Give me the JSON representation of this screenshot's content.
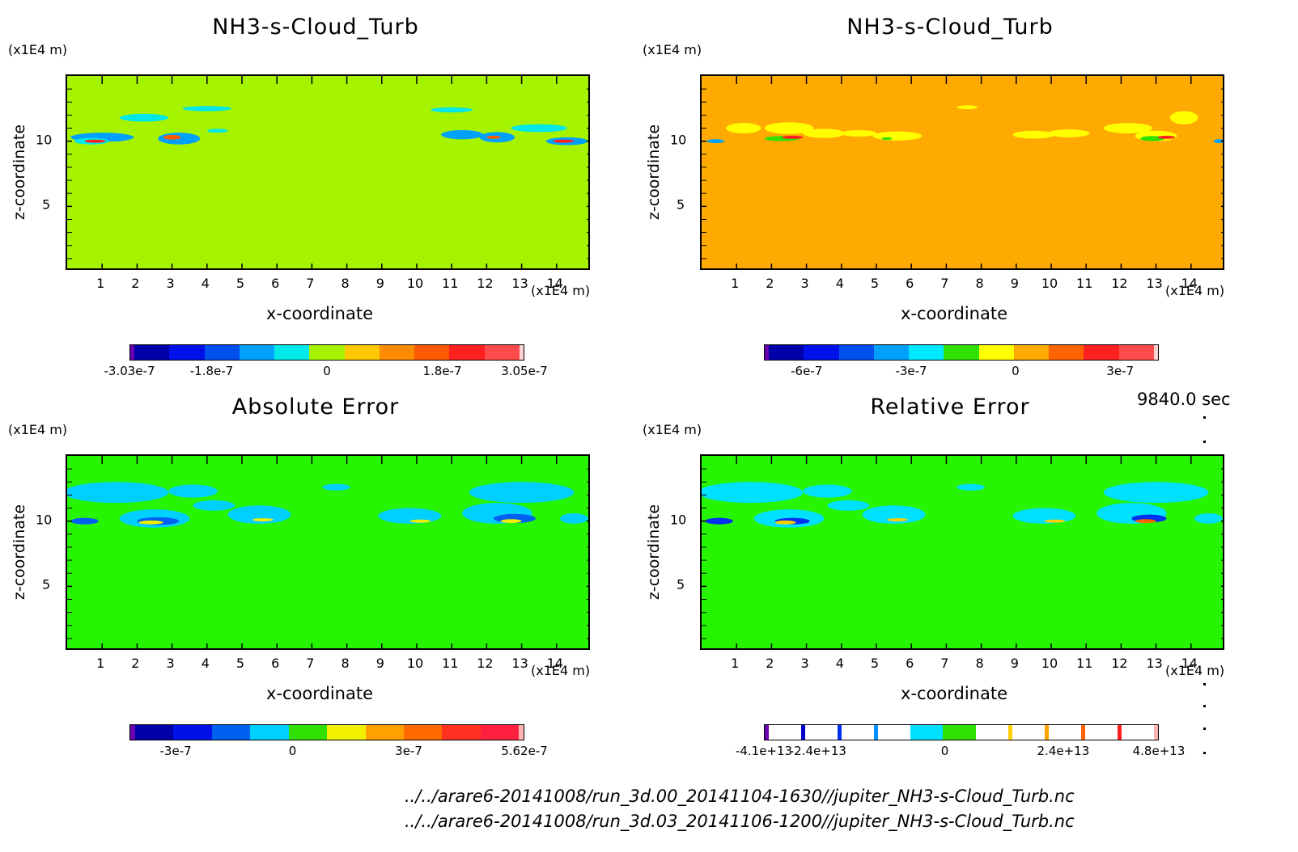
{
  "time_label": "9840.0 sec",
  "files": [
    "../../arare6-20141008/run_3d.00_20141104-1630//jupiter_NH3-s-Cloud_Turb.nc",
    "../../arare6-20141008/run_3d.03_20141106-1200//jupiter_NH3-s-Cloud_Turb.nc"
  ],
  "chart_data": [
    {
      "type": "heatmap",
      "title": "NH3-s-Cloud_Turb",
      "xlabel": "x-coordinate",
      "ylabel": "z-coordinate",
      "x_unit": "(x1E4 m)",
      "z_unit": "(x1E4 m)",
      "x_ticks": [
        "1",
        "2",
        "3",
        "4",
        "5",
        "6",
        "7",
        "8",
        "9",
        "10",
        "11",
        "12",
        "13",
        "14"
      ],
      "z_ticks": [
        "5",
        "10"
      ],
      "xlim": [
        0,
        15
      ],
      "zlim": [
        0,
        15
      ],
      "background_color": "#a6f300",
      "colorbar": {
        "colors": [
          "#6a00b0",
          "#0000a8",
          "#0010e8",
          "#0050f0",
          "#00a0ff",
          "#00e8e8",
          "#a6f300",
          "#ffc800",
          "#ff8c00",
          "#ff5a00",
          "#ff2020",
          "#ff4b4b",
          "#ffd2d2"
        ],
        "labels": [
          "-3.03e-7",
          "-1.8e-7",
          "0",
          "1.8e-7",
          "3.05e-7"
        ]
      }
    },
    {
      "type": "heatmap",
      "title": "NH3-s-Cloud_Turb",
      "xlabel": "x-coordinate",
      "ylabel": "z-coordinate",
      "x_unit": "(x1E4 m)",
      "z_unit": "(x1E4 m)",
      "x_ticks": [
        "1",
        "2",
        "3",
        "4",
        "5",
        "6",
        "7",
        "8",
        "9",
        "10",
        "11",
        "12",
        "13",
        "14"
      ],
      "z_ticks": [
        "5",
        "10"
      ],
      "xlim": [
        0,
        15
      ],
      "zlim": [
        0,
        15
      ],
      "background_color": "#ffaa00",
      "colorbar": {
        "colors": [
          "#6a00b0",
          "#0000a8",
          "#0010e8",
          "#0050f0",
          "#00a0ff",
          "#00e8ff",
          "#30e000",
          "#ffff00",
          "#ffaa00",
          "#ff6400",
          "#ff2020",
          "#ff4b4b",
          "#ffd2d2"
        ],
        "labels": [
          "-6e-7",
          "-3e-7",
          "0",
          "3e-7"
        ]
      }
    },
    {
      "type": "heatmap",
      "title": "Absolute Error",
      "xlabel": "x-coordinate",
      "ylabel": "z-coordinate",
      "x_unit": "(x1E4 m)",
      "z_unit": "(x1E4 m)",
      "x_ticks": [
        "1",
        "2",
        "3",
        "4",
        "5",
        "6",
        "7",
        "8",
        "9",
        "10",
        "11",
        "12",
        "13",
        "14"
      ],
      "z_ticks": [
        "5",
        "10"
      ],
      "xlim": [
        0,
        15
      ],
      "zlim": [
        0,
        15
      ],
      "background_color": "#27f400",
      "colorbar": {
        "colors": [
          "#6a00b0",
          "#0000a8",
          "#0010e8",
          "#0060f0",
          "#00d0ff",
          "#30e000",
          "#f0f000",
          "#ffa000",
          "#ff6a00",
          "#ff3020",
          "#ff2040",
          "#ffb4b4"
        ],
        "labels": [
          "-3e-7",
          "0",
          "3e-7",
          "5.62e-7"
        ]
      }
    },
    {
      "type": "heatmap",
      "title": "Relative Error",
      "xlabel": "x-coordinate",
      "ylabel": "z-coordinate",
      "x_unit": "(x1E4 m)",
      "z_unit": "(x1E4 m)",
      "x_ticks": [
        "1",
        "2",
        "3",
        "4",
        "5",
        "6",
        "7",
        "8",
        "9",
        "10",
        "11",
        "12",
        "13",
        "14"
      ],
      "z_ticks": [
        "5",
        "10"
      ],
      "xlim": [
        0,
        15
      ],
      "zlim": [
        0,
        15
      ],
      "background_color": "#27f400",
      "colorbar": {
        "colors": [
          "#6a00b0",
          "#ffffff",
          "#0000c8",
          "#ffffff",
          "#0030f0",
          "#ffffff",
          "#0090ff",
          "#ffffff",
          "#00e0ff",
          "#30e000",
          "#ffffff",
          "#ffd000",
          "#ffffff",
          "#ffa000",
          "#ffffff",
          "#ff6400",
          "#ffffff",
          "#ff2020",
          "#ffffff",
          "#ffb4b4"
        ],
        "labels": [
          "-4.1e+13",
          "-2.4e+13",
          "0",
          "2.4e+13",
          "4.8e+13"
        ]
      }
    }
  ]
}
